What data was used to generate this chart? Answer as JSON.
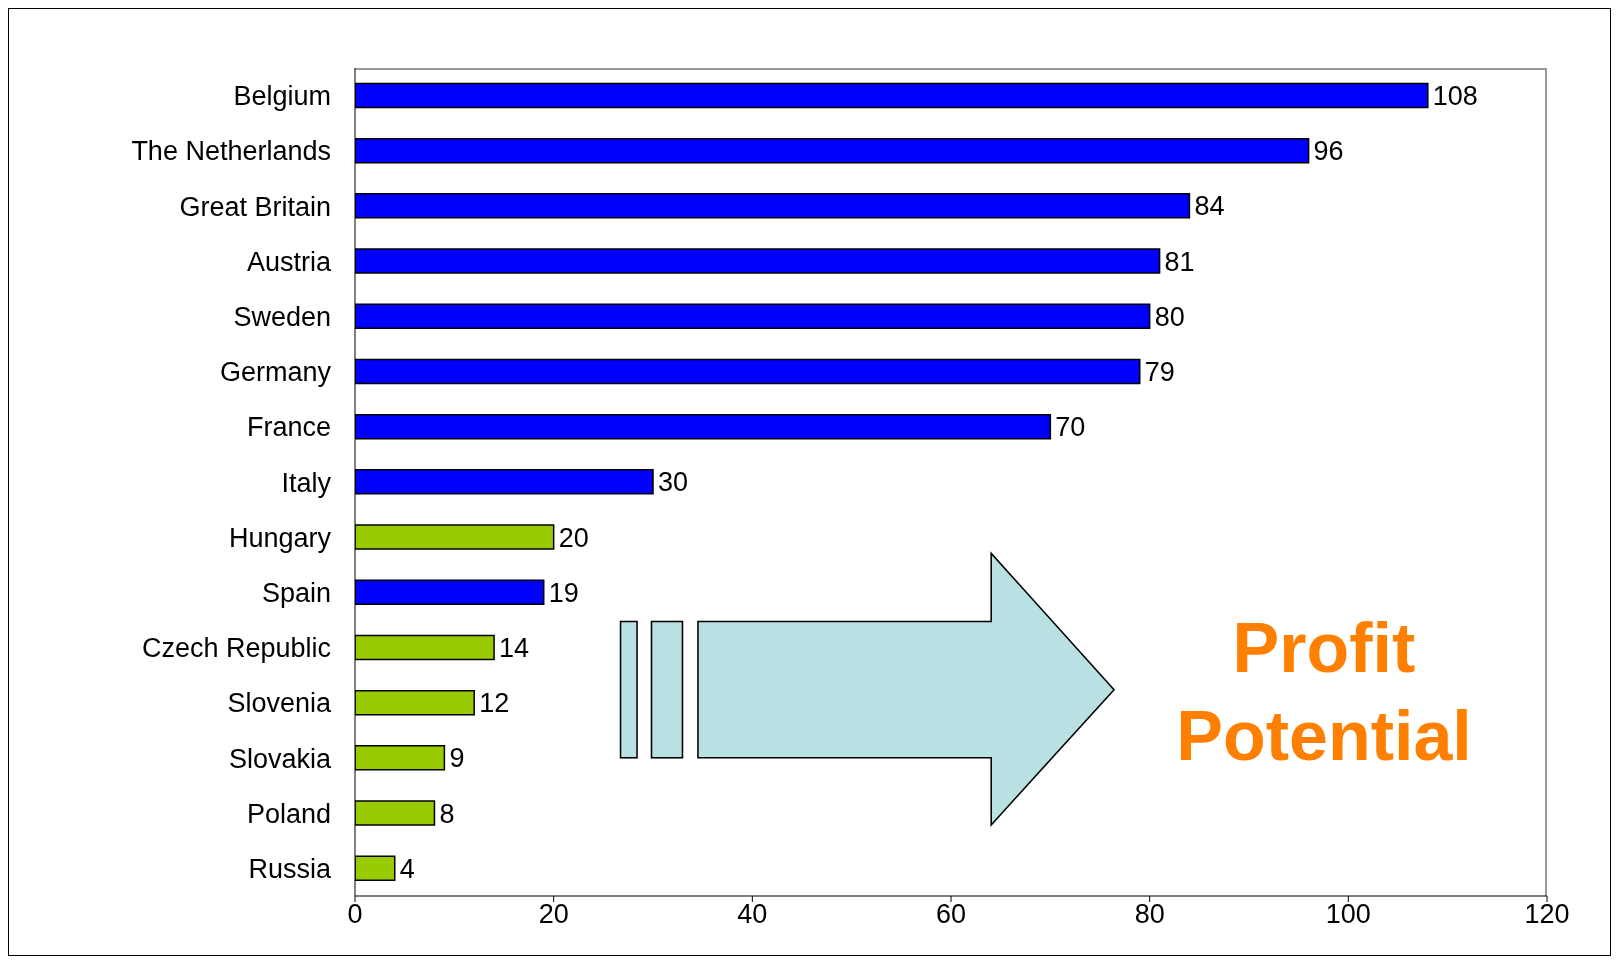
{
  "chart_data": {
    "type": "bar",
    "orientation": "horizontal",
    "categories": [
      "Belgium",
      "The Netherlands",
      "Great Britain",
      "Austria",
      "Sweden",
      "Germany",
      "France",
      "Italy",
      "Hungary",
      "Spain",
      "Czech Republic",
      "Slovenia",
      "Slovakia",
      "Poland",
      "Russia"
    ],
    "values": [
      108,
      96,
      84,
      81,
      80,
      79,
      70,
      30,
      20,
      19,
      14,
      12,
      9,
      8,
      4
    ],
    "colors": [
      "#0000ff",
      "#0000ff",
      "#0000ff",
      "#0000ff",
      "#0000ff",
      "#0000ff",
      "#0000ff",
      "#0000ff",
      "#99cc00",
      "#0000ff",
      "#99cc00",
      "#99cc00",
      "#99cc00",
      "#99cc00",
      "#99cc00"
    ],
    "xlim": [
      0,
      120
    ],
    "xticks": [
      0,
      20,
      40,
      60,
      80,
      100,
      120
    ],
    "data_labels": true,
    "annotations": [
      "Profit Potential"
    ]
  }
}
